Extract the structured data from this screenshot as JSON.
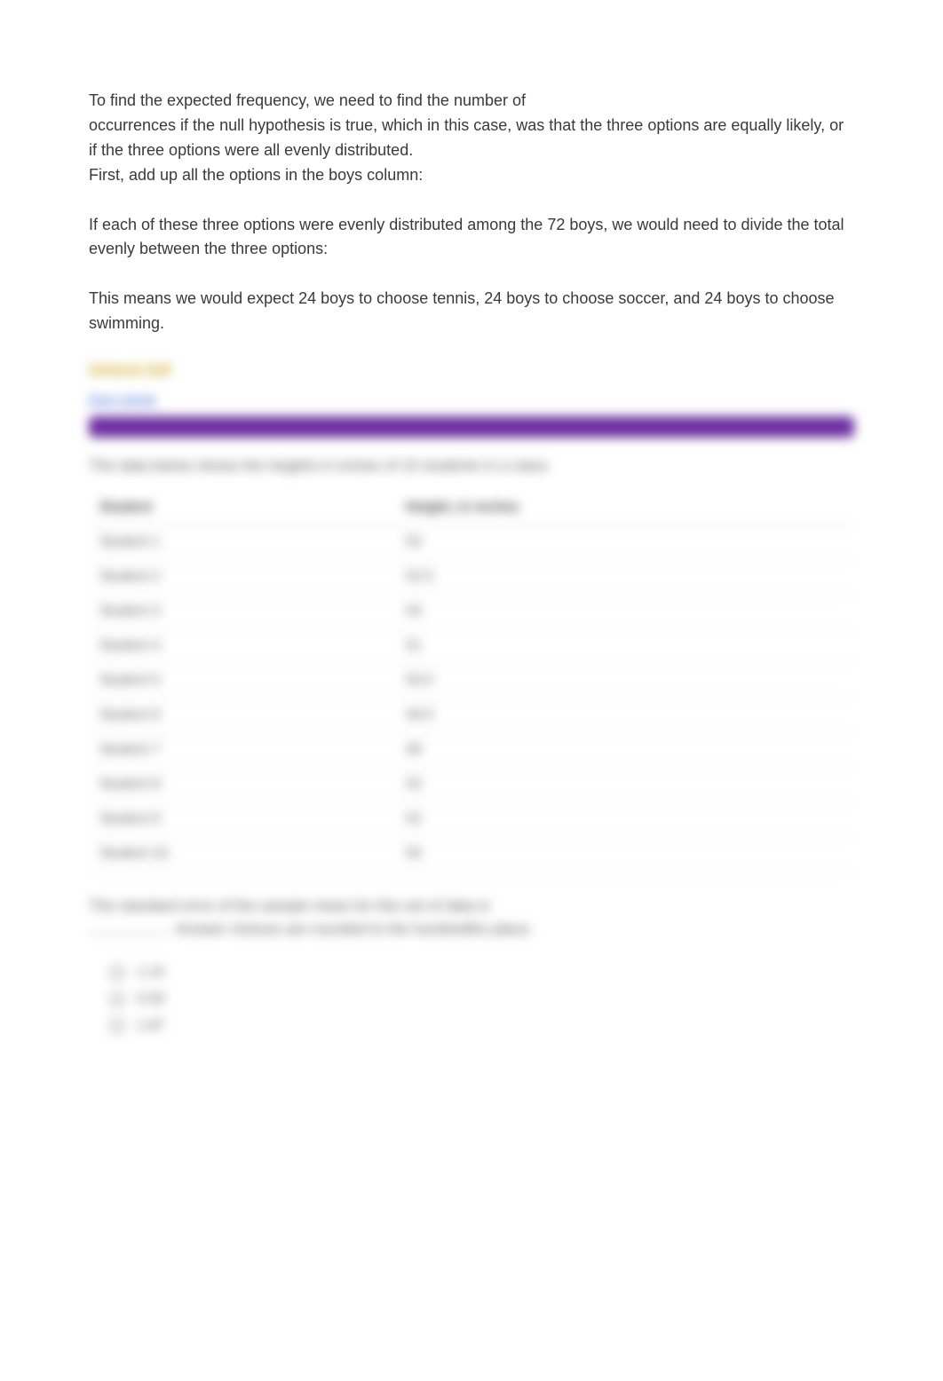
{
  "explanation": {
    "p1": "To find the expected frequency, we need to find the number of",
    "p2": "occurrences if the null hypothesis is true, which in this case, was that the three options are equally likely, or if the three options were all evenly distributed.",
    "p3": "First, add up all the options in the boys column:",
    "p4": "If each of these three options were evenly distributed among the 72 boys, we would need to divide the total evenly between the three options:",
    "p5": "This means we would expect 24 boys to choose tennis, 24 boys to choose soccer, and 24 boys to choose swimming."
  },
  "blurred": {
    "unlock_label": "Unlock full",
    "points_label": "Earn points",
    "question_intro": "The data below shows the heights in inches of 10 students in a class.",
    "table": {
      "columns": [
        "Student",
        "Height, in inches"
      ],
      "rows": [
        [
          "Student 1",
          "53"
        ],
        [
          "Student 2",
          "52.5"
        ],
        [
          "Student 3",
          "54"
        ],
        [
          "Student 4",
          "51"
        ],
        [
          "Student 5",
          "50.5"
        ],
        [
          "Student 6",
          "49.5"
        ],
        [
          "Student 7",
          "48"
        ],
        [
          "Student 8",
          "53"
        ],
        [
          "Student 9",
          "52"
        ],
        [
          "Student 10",
          "50"
        ]
      ]
    },
    "after_table_line1": "The standard error of the sample mean for this set of data is",
    "after_table_line2": "Answer choices are rounded to the hundredths place.",
    "options": [
      "1.15",
      "0.59",
      "1.87"
    ]
  },
  "colors": {
    "text": "#3a3a3a",
    "muted": "#555555",
    "purple": "#6b2fa0",
    "link_gold": "#cfa925",
    "link_blue": "#3a6bd8",
    "border": "#e4e4e4"
  }
}
